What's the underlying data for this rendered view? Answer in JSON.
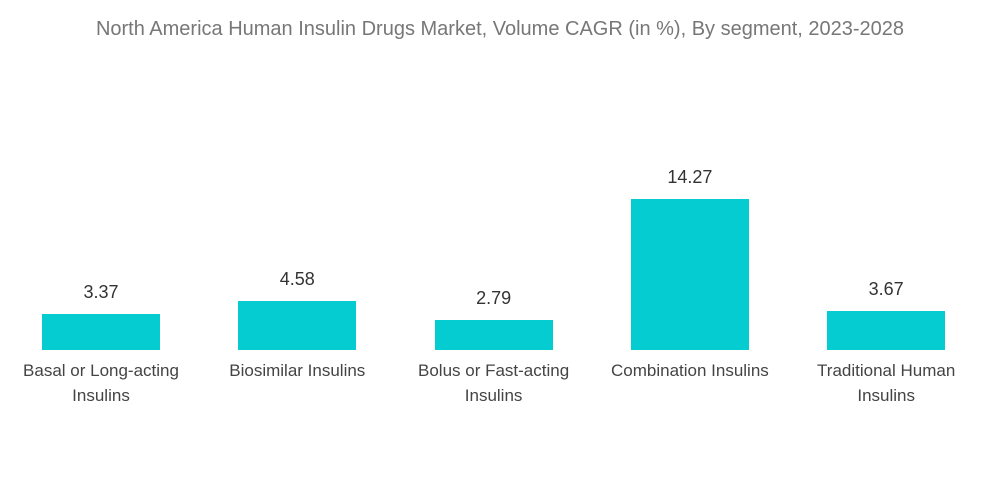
{
  "chart_data": {
    "type": "bar",
    "title": "North America Human Insulin Drugs Market, Volume CAGR (in %), By segment, 2023-2028",
    "categories": [
      "Basal or Long-acting Insulins",
      "Biosimilar Insulins",
      "Bolus or Fast-acting Insulins",
      "Combination Insulins",
      "Traditional Human Insulins"
    ],
    "values": [
      3.37,
      4.58,
      2.79,
      14.27,
      3.67
    ],
    "color": "#05ccd0"
  }
}
